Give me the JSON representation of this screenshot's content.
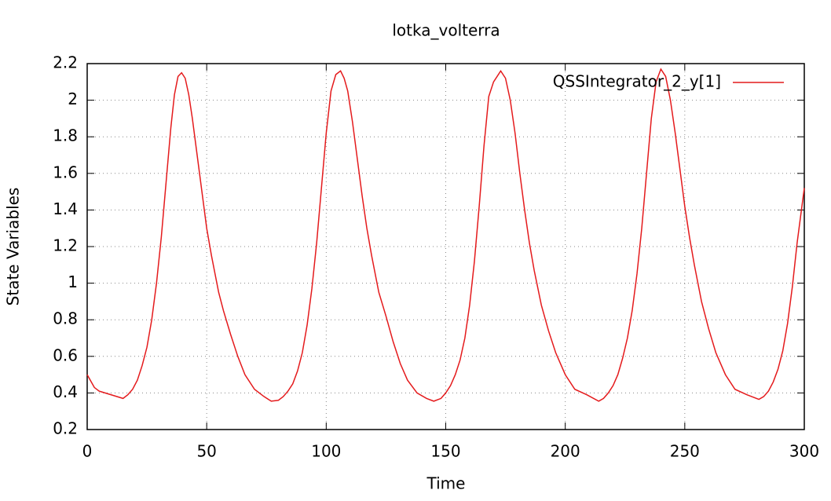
{
  "chart_data": {
    "type": "line",
    "title": "lotka_volterra",
    "x_label": "Time",
    "y_label": "State Variables",
    "xlim": [
      0,
      300
    ],
    "ylim": [
      0.2,
      2.2
    ],
    "xticks": [
      0,
      50,
      100,
      150,
      200,
      250,
      300
    ],
    "yticks": [
      0.2,
      0.4,
      0.6,
      0.8,
      1,
      1.2,
      1.4,
      1.6,
      1.8,
      2,
      2.2
    ],
    "grid": true,
    "legend": "top-right",
    "x": [
      0,
      3,
      5,
      15,
      17,
      19,
      21,
      23,
      25,
      27,
      29,
      31,
      33,
      35,
      36.5,
      38,
      39.5,
      41,
      42.5,
      44,
      46,
      48,
      50,
      52,
      55,
      57,
      60,
      63,
      66,
      70,
      74,
      77,
      80,
      82,
      84,
      86,
      88,
      90,
      92,
      94,
      96,
      98,
      100,
      102,
      104,
      106,
      107.5,
      109,
      111,
      113,
      115,
      117,
      119,
      122,
      125,
      128,
      131,
      134,
      138,
      142,
      145,
      148,
      150,
      152,
      154,
      156,
      158,
      160,
      162,
      164,
      166,
      168,
      170,
      173,
      175,
      177,
      179,
      181,
      183,
      185,
      187,
      190,
      193,
      196,
      200,
      204,
      209,
      214,
      216,
      218,
      220,
      222,
      224,
      226,
      228,
      230,
      232,
      234,
      236,
      238,
      240,
      242,
      244,
      246,
      248,
      250,
      252,
      254,
      257,
      260,
      263,
      267,
      271,
      276,
      281,
      283,
      285,
      287,
      289,
      291,
      293,
      295,
      297,
      300
    ],
    "series": [
      {
        "name": "QSSIntegrator_2_y[1]",
        "color": "#e41a1c",
        "values": [
          0.5,
          0.43,
          0.41,
          0.37,
          0.39,
          0.42,
          0.47,
          0.55,
          0.65,
          0.8,
          1.0,
          1.25,
          1.55,
          1.85,
          2.03,
          2.13,
          2.15,
          2.12,
          2.03,
          1.9,
          1.7,
          1.5,
          1.3,
          1.15,
          0.95,
          0.85,
          0.72,
          0.6,
          0.5,
          0.42,
          0.38,
          0.355,
          0.36,
          0.38,
          0.41,
          0.45,
          0.52,
          0.62,
          0.77,
          0.97,
          1.22,
          1.52,
          1.82,
          2.05,
          2.14,
          2.16,
          2.12,
          2.05,
          1.88,
          1.68,
          1.48,
          1.3,
          1.15,
          0.95,
          0.82,
          0.68,
          0.56,
          0.47,
          0.4,
          0.37,
          0.355,
          0.37,
          0.4,
          0.44,
          0.5,
          0.58,
          0.7,
          0.88,
          1.12,
          1.42,
          1.75,
          2.02,
          2.1,
          2.16,
          2.12,
          2.0,
          1.82,
          1.6,
          1.4,
          1.22,
          1.07,
          0.88,
          0.74,
          0.62,
          0.5,
          0.42,
          0.39,
          0.355,
          0.37,
          0.4,
          0.44,
          0.5,
          0.59,
          0.7,
          0.85,
          1.05,
          1.3,
          1.6,
          1.9,
          2.1,
          2.17,
          2.13,
          2.0,
          1.82,
          1.62,
          1.42,
          1.25,
          1.1,
          0.9,
          0.75,
          0.62,
          0.5,
          0.42,
          0.39,
          0.365,
          0.38,
          0.41,
          0.46,
          0.53,
          0.63,
          0.78,
          0.98,
          1.22,
          1.52
        ]
      }
    ]
  }
}
